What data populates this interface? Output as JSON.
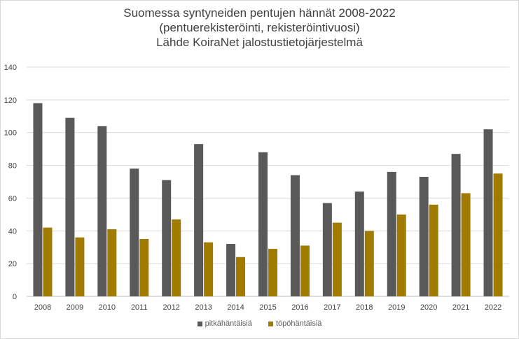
{
  "title_lines": [
    "Suomessa syntyneiden pentujen hännät 2008-2022",
    "(pentuerekisteröinti, rekisteröintivuosi)",
    "Lähde KoiraNet jalostustietojärjestelmä"
  ],
  "colors": {
    "pitkahantaisia": "#595959",
    "topohantaisia": "#a07b00",
    "grid": "#d9d9d9",
    "axis": "#bfbfbf"
  },
  "chart_data": {
    "type": "bar",
    "title": "Suomessa syntyneiden pentujen hännät 2008-2022 (pentuerekisteröinti, rekisteröintivuosi) Lähde KoiraNet jalostustietojärjestelmä",
    "xlabel": "",
    "ylabel": "",
    "ylim": [
      0,
      140
    ],
    "yticks": [
      0,
      20,
      40,
      60,
      80,
      100,
      120,
      140
    ],
    "grid": true,
    "legend_position": "bottom",
    "categories": [
      "2008",
      "2009",
      "2010",
      "2011",
      "2012",
      "2013",
      "2014",
      "2015",
      "2016",
      "2017",
      "2018",
      "2019",
      "2020",
      "2021",
      "2022"
    ],
    "series": [
      {
        "name": "pitkähäntäisiä",
        "color": "#595959",
        "values": [
          118,
          109,
          104,
          78,
          71,
          93,
          32,
          88,
          74,
          57,
          64,
          76,
          73,
          87,
          102
        ]
      },
      {
        "name": "töpöhäntäisiä",
        "color": "#a07b00",
        "values": [
          42,
          36,
          41,
          35,
          47,
          33,
          24,
          29,
          31,
          45,
          40,
          50,
          56,
          63,
          75
        ]
      }
    ]
  }
}
